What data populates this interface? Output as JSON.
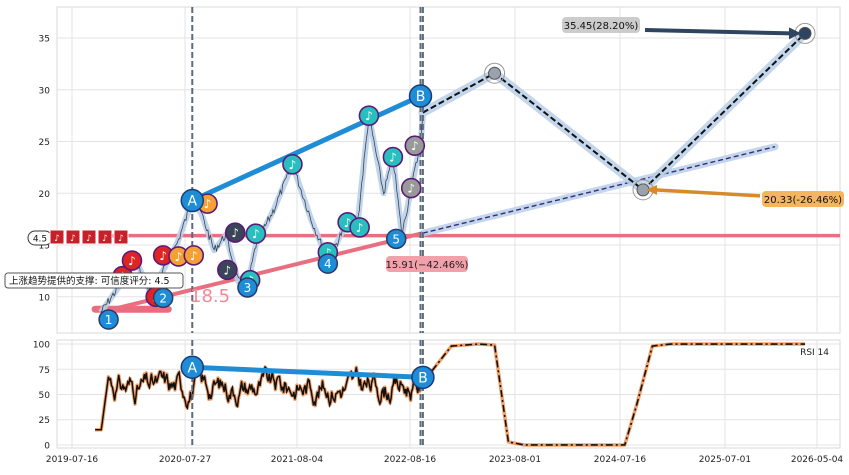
{
  "chart_data": [
    {
      "type": "line",
      "panel": "price",
      "yticks": [
        10,
        15,
        20,
        25,
        30,
        35
      ],
      "ylim": [
        6.5,
        38
      ],
      "grid": true,
      "vlines": [
        "2020-08-20",
        "2022-09-20",
        "2022-09-28"
      ],
      "markers": [
        {
          "x": "2019-11-15",
          "y": 7.8,
          "label": "1",
          "color": "#1f8dd6"
        },
        {
          "x": "2020-05-15",
          "y": 9.9,
          "label": "2",
          "color": "#1f8dd6"
        },
        {
          "x": "2021-02-20",
          "y": 10.9,
          "label": "3",
          "color": "#1f8dd6"
        },
        {
          "x": "2021-11-15",
          "y": 13.2,
          "label": "4",
          "color": "#1f8dd6"
        },
        {
          "x": "2022-07-01",
          "y": 15.6,
          "label": "5",
          "color": "#1f8dd6"
        },
        {
          "x": "2020-08-20",
          "y": 19.3,
          "label": "A",
          "color": "#1f8dd6"
        },
        {
          "x": "2022-09-20",
          "y": 29.4,
          "label": "B",
          "color": "#1f8dd6"
        }
      ],
      "price_points": [
        [
          "2019-10-20",
          8.5
        ],
        [
          "2019-12-20",
          11.0
        ],
        [
          "2020-02-10",
          13.8
        ],
        [
          "2020-04-01",
          10.5
        ],
        [
          "2020-05-20",
          12.8
        ],
        [
          "2020-07-01",
          15.2
        ],
        [
          "2020-08-20",
          19.3
        ],
        [
          "2020-09-20",
          18.0
        ],
        [
          "2020-11-01",
          14.5
        ],
        [
          "2020-12-10",
          16.0
        ],
        [
          "2021-01-20",
          11.5
        ],
        [
          "2021-02-20",
          11.0
        ],
        [
          "2021-03-20",
          15.0
        ],
        [
          "2021-05-20",
          18.5
        ],
        [
          "2021-07-20",
          22.8
        ],
        [
          "2021-09-20",
          17.5
        ],
        [
          "2021-11-15",
          13.5
        ],
        [
          "2022-01-15",
          17.0
        ],
        [
          "2022-02-20",
          16.5
        ],
        [
          "2022-04-01",
          27.5
        ],
        [
          "2022-05-20",
          20.0
        ],
        [
          "2022-06-20",
          23.5
        ],
        [
          "2022-07-20",
          16.0
        ],
        [
          "2022-08-20",
          20.5
        ],
        [
          "2022-09-20",
          24.8
        ],
        [
          "2022-09-28",
          27.5
        ]
      ],
      "notes": [
        {
          "x": "2020-01-01",
          "y": 12.0,
          "color": "#e02424"
        },
        {
          "x": "2020-02-01",
          "y": 13.5,
          "color": "#e02424"
        },
        {
          "x": "2020-04-20",
          "y": 10.0,
          "color": "#e02424"
        },
        {
          "x": "2020-05-15",
          "y": 14.0,
          "color": "#e02424"
        },
        {
          "x": "2020-07-05",
          "y": 13.9,
          "color": "#f5a034"
        },
        {
          "x": "2020-08-25",
          "y": 14.0,
          "color": "#f5a034"
        },
        {
          "x": "2020-10-10",
          "y": 19.0,
          "color": "#f5a034"
        },
        {
          "x": "2020-12-15",
          "y": 12.6,
          "color": "#3a4558"
        },
        {
          "x": "2021-01-10",
          "y": 16.2,
          "color": "#3a4558"
        },
        {
          "x": "2021-03-01",
          "y": 11.6,
          "color": "#2abfbf"
        },
        {
          "x": "2021-03-20",
          "y": 16.1,
          "color": "#2abfbf"
        },
        {
          "x": "2021-07-20",
          "y": 22.8,
          "color": "#2abfbf"
        },
        {
          "x": "2021-11-15",
          "y": 14.3,
          "color": "#2abfbf"
        },
        {
          "x": "2022-01-20",
          "y": 17.2,
          "color": "#2abfbf"
        },
        {
          "x": "2022-03-01",
          "y": 16.7,
          "color": "#2abfbf"
        },
        {
          "x": "2022-04-01",
          "y": 27.5,
          "color": "#2abfbf"
        },
        {
          "x": "2022-06-20",
          "y": 23.5,
          "color": "#2abfbf"
        },
        {
          "x": "2022-08-20",
          "y": 20.5,
          "color": "#999999"
        },
        {
          "x": "2022-09-01",
          "y": 24.6,
          "color": "#999999"
        }
      ],
      "trend_upper": {
        "from": [
          "2020-08-20",
          19.3
        ],
        "to": [
          "2022-09-20",
          29.4
        ]
      },
      "trend_lower": {
        "from": [
          "2019-11-15",
          8.7
        ],
        "to": [
          "2025-12-15",
          24.5
        ]
      },
      "support_line_y": 15.91,
      "support_line_start": "2019-11-01",
      "support_band_y": 8.8,
      "support_band_range": [
        "2019-10-01",
        "2020-06-01"
      ],
      "projection": [
        [
          "2022-09-28",
          27.8
        ],
        [
          "2023-05-25",
          31.6
        ],
        [
          "2024-10-01",
          20.33
        ],
        [
          "2026-03-25",
          35.45
        ]
      ],
      "annotations": {
        "top": {
          "text": "35.45(28.20%)",
          "x": "2026-03-25",
          "y": 35.45,
          "bg": "#cccccc"
        },
        "mid": {
          "text": "20.33(-26.46%)",
          "x": "2024-10-01",
          "y": 20.33,
          "bg": "#f5b55c"
        },
        "low": {
          "text": "15.91(−42.46%)",
          "bg": "#f2a0aa"
        },
        "support_value": {
          "text": "18.5",
          "color": "#f08a98"
        },
        "badge": {
          "text": "4.5"
        },
        "support_note": {
          "text": "上涨趋势提供的支撑: 可信度评分: 4.5"
        }
      }
    },
    {
      "type": "line",
      "panel": "rsi",
      "series_label": "RSI 14",
      "yticks": [
        0,
        25,
        50,
        75,
        100
      ],
      "ylim": [
        -3,
        104
      ],
      "xticks": [
        "2019-07-16",
        "2020-07-27",
        "2021-08-04",
        "2022-08-16",
        "2023-08-01",
        "2024-07-16",
        "2025-07-01",
        "2026-05-04"
      ],
      "markers": [
        {
          "x": "2020-08-20",
          "y": 77,
          "label": "A"
        },
        {
          "x": "2022-09-28",
          "y": 67,
          "label": "B"
        }
      ],
      "projection": [
        [
          "2022-09-28",
          62
        ],
        [
          "2023-01-01",
          98
        ],
        [
          "2023-04-01",
          100
        ],
        [
          "2023-05-25",
          99
        ],
        [
          "2023-07-10",
          3
        ],
        [
          "2023-09-01",
          0
        ],
        [
          "2024-08-01",
          0
        ],
        [
          "2024-09-10",
          40
        ],
        [
          "2024-11-01",
          98
        ],
        [
          "2025-01-01",
          100
        ],
        [
          "2026-03-25",
          100
        ]
      ]
    }
  ]
}
